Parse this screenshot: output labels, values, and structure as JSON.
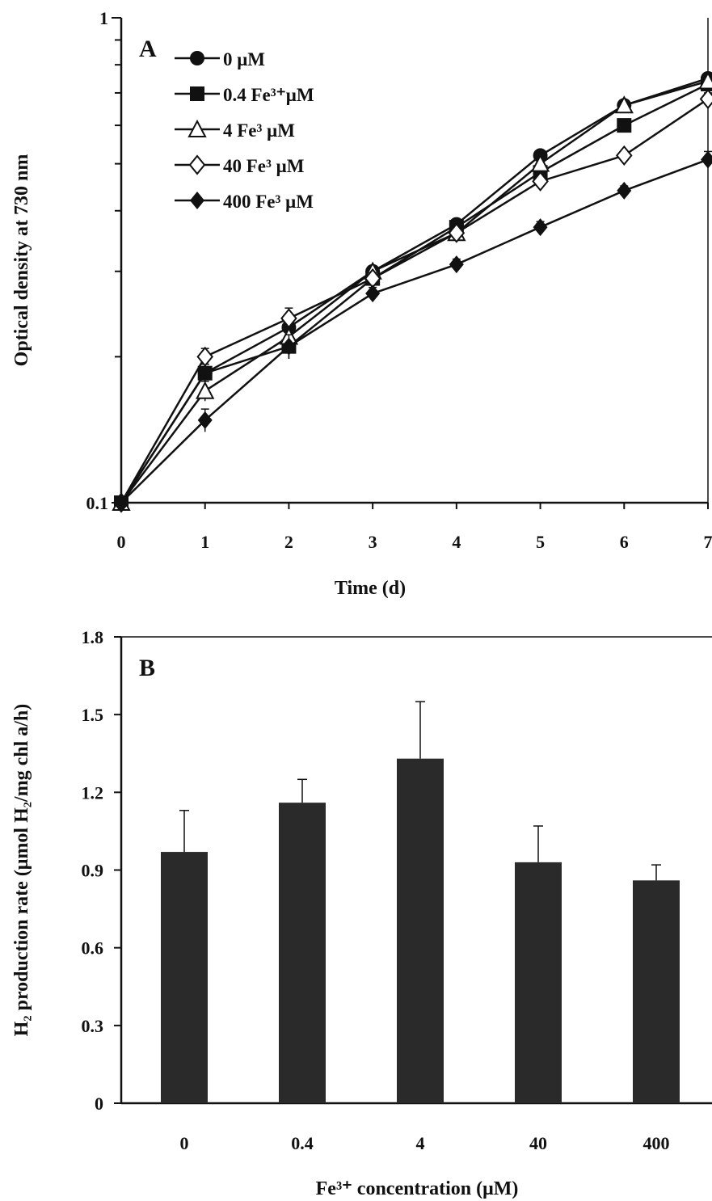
{
  "chart_data": [
    {
      "type": "line",
      "panel_label": "A",
      "xlabel": "Time (d)",
      "ylabel": "Optical density at 730 nm",
      "xlim": [
        0,
        7
      ],
      "ylim": [
        0.1,
        1
      ],
      "yscale": "log",
      "x_ticks": [
        "0",
        "1",
        "2",
        "3",
        "4",
        "5",
        "6",
        "7"
      ],
      "y_ticks": [
        "0.1",
        "1"
      ],
      "legend_position": "top-left",
      "x": [
        0,
        1,
        2,
        3,
        4,
        5,
        6,
        7
      ],
      "series": [
        {
          "name": "0 μM",
          "marker": "filled-circle",
          "values": [
            0.1,
            0.185,
            0.23,
            0.3,
            0.375,
            0.52,
            0.66,
            0.75
          ]
        },
        {
          "name": "0.4 Fe³⁺μM",
          "marker": "filled-square",
          "values": [
            0.1,
            0.185,
            0.21,
            0.29,
            0.37,
            0.48,
            0.6,
            0.73
          ]
        },
        {
          "name": "4 Fe³ μM",
          "marker": "open-triangle",
          "values": [
            0.1,
            0.17,
            0.22,
            0.3,
            0.36,
            0.5,
            0.66,
            0.74
          ]
        },
        {
          "name": "40 Fe³ μM",
          "marker": "open-diamond",
          "values": [
            0.1,
            0.2,
            0.24,
            0.29,
            0.36,
            0.46,
            0.52,
            0.68
          ]
        },
        {
          "name": "400 Fe³ μM",
          "marker": "filled-diamond",
          "values": [
            0.1,
            0.148,
            0.21,
            0.27,
            0.31,
            0.37,
            0.44,
            0.51
          ]
        }
      ],
      "error_bars": [
        0,
        0.008,
        0.012,
        0.008,
        0.008,
        0.01,
        0.01,
        0.02
      ]
    },
    {
      "type": "bar",
      "panel_label": "B",
      "xlabel": "Fe³⁺ concentration (μM)",
      "ylabel": "H₂ production rate (μmol H₂/mg chl a/h)",
      "ylim": [
        0,
        1.8
      ],
      "y_ticks": [
        "0",
        "0.3",
        "0.6",
        "0.9",
        "1.2",
        "1.5",
        "1.8"
      ],
      "categories": [
        "0",
        "0.4",
        "4",
        "40",
        "400"
      ],
      "values": [
        0.97,
        1.16,
        1.33,
        0.93,
        0.86
      ],
      "errors": [
        0.16,
        0.09,
        0.22,
        0.14,
        0.06
      ],
      "bar_color": "#2a2a2a"
    }
  ]
}
